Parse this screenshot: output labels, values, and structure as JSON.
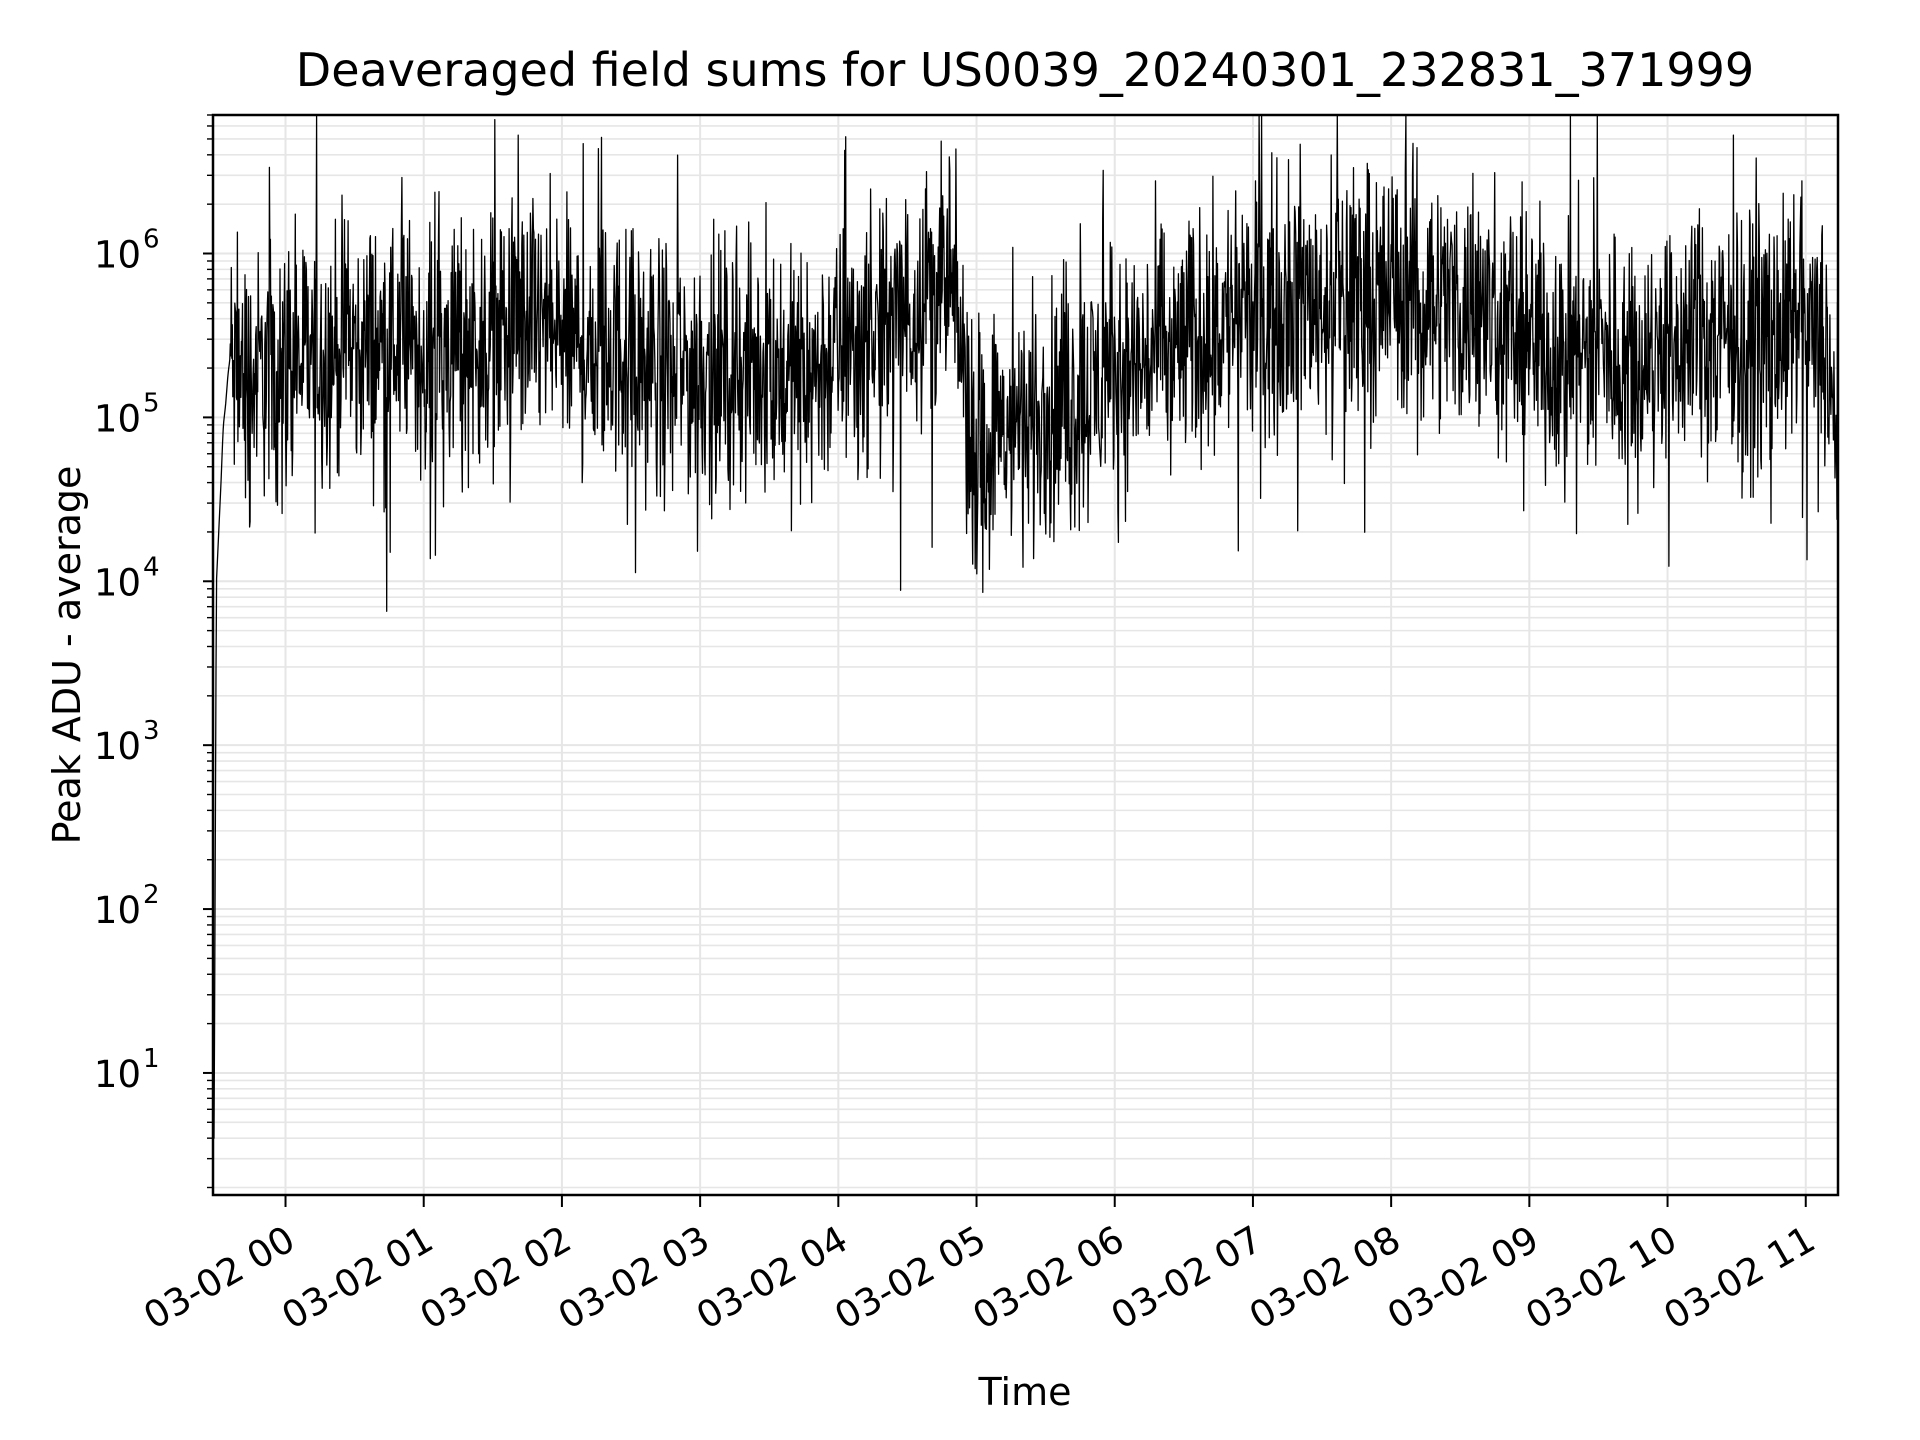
{
  "chart_data": {
    "type": "line",
    "title": "Deaveraged field sums for US0039_20240301_232831_371999",
    "xlabel": "Time",
    "ylabel": "Peak ADU - average",
    "yscale": "log",
    "ylim": [
      1.8,
      7000000
    ],
    "xlim": [
      "2024-03-01 23:28:31",
      "2024-03-02 11:14:00"
    ],
    "grid": "on (major and minor)",
    "line_color": "#000000",
    "grid_color": "#e6e6e6",
    "x_ticks": [
      {
        "value": "2024-03-02 00:00",
        "label": "03-02 00"
      },
      {
        "value": "2024-03-02 01:00",
        "label": "03-02 01"
      },
      {
        "value": "2024-03-02 02:00",
        "label": "03-02 02"
      },
      {
        "value": "2024-03-02 03:00",
        "label": "03-02 03"
      },
      {
        "value": "2024-03-02 04:00",
        "label": "03-02 04"
      },
      {
        "value": "2024-03-02 05:00",
        "label": "03-02 05"
      },
      {
        "value": "2024-03-02 06:00",
        "label": "03-02 06"
      },
      {
        "value": "2024-03-02 07:00",
        "label": "03-02 07"
      },
      {
        "value": "2024-03-02 08:00",
        "label": "03-02 08"
      },
      {
        "value": "2024-03-02 09:00",
        "label": "03-02 09"
      },
      {
        "value": "2024-03-02 10:00",
        "label": "03-02 10"
      },
      {
        "value": "2024-03-02 11:00",
        "label": "03-02 11"
      }
    ],
    "y_ticks": [
      {
        "value": 10,
        "base": "10",
        "exp": "1"
      },
      {
        "value": 100,
        "base": "10",
        "exp": "2"
      },
      {
        "value": 1000,
        "base": "10",
        "exp": "3"
      },
      {
        "value": 10000,
        "base": "10",
        "exp": "4"
      },
      {
        "value": 100000,
        "base": "10",
        "exp": "5"
      },
      {
        "value": 1000000,
        "base": "10",
        "exp": "6"
      }
    ],
    "series": [
      {
        "x": [
          "2024-03-01 23:28:31",
          "2024-03-01 23:29:00",
          "2024-03-01 23:30:00",
          "2024-03-01 23:31:00",
          "2024-03-01 23:32:00",
          "2024-03-01 23:33:00",
          "2024-03-01 23:34:00",
          "2024-03-01 23:35:00",
          "2024-03-01 23:36:00",
          "2024-03-01 23:38:00",
          "2024-03-01 23:40:00",
          "2024-03-01 23:42:00",
          "2024-03-01 23:45:00",
          "2024-03-01 23:50:00",
          "2024-03-01 23:55:00",
          "2024-03-02 00:00:00",
          "2024-03-02 00:10:00",
          "2024-03-02 00:20:00",
          "2024-03-02 00:30:00",
          "2024-03-02 00:40:00",
          "2024-03-02 00:50:00",
          "2024-03-02 01:00:00",
          "2024-03-02 01:10:00",
          "2024-03-02 01:20:00",
          "2024-03-02 01:30:00",
          "2024-03-02 01:40:00",
          "2024-03-02 01:50:00",
          "2024-03-02 02:00:00",
          "2024-03-02 02:10:00",
          "2024-03-02 02:20:00",
          "2024-03-02 02:30:00",
          "2024-03-02 02:40:00",
          "2024-03-02 02:50:00",
          "2024-03-02 03:00:00",
          "2024-03-02 03:10:00",
          "2024-03-02 03:20:00",
          "2024-03-02 03:30:00",
          "2024-03-02 03:40:00",
          "2024-03-02 03:50:00",
          "2024-03-02 04:00:00",
          "2024-03-02 04:10:00",
          "2024-03-02 04:20:00",
          "2024-03-02 04:30:00",
          "2024-03-02 04:40:00",
          "2024-03-02 04:50:00",
          "2024-03-02 05:00:00",
          "2024-03-02 05:10:00",
          "2024-03-02 05:20:00",
          "2024-03-02 05:30:00",
          "2024-03-02 05:40:00",
          "2024-03-02 05:50:00",
          "2024-03-02 06:00:00",
          "2024-03-02 06:10:00",
          "2024-03-02 06:20:00",
          "2024-03-02 06:30:00",
          "2024-03-02 06:40:00",
          "2024-03-02 06:50:00",
          "2024-03-02 07:00:00",
          "2024-03-02 07:10:00",
          "2024-03-02 07:20:00",
          "2024-03-02 07:30:00",
          "2024-03-02 07:40:00",
          "2024-03-02 07:50:00",
          "2024-03-02 08:00:00",
          "2024-03-02 08:10:00",
          "2024-03-02 08:20:00",
          "2024-03-02 08:30:00",
          "2024-03-02 08:40:00",
          "2024-03-02 08:50:00",
          "2024-03-02 09:00:00",
          "2024-03-02 09:10:00",
          "2024-03-02 09:20:00",
          "2024-03-02 09:30:00",
          "2024-03-02 09:40:00",
          "2024-03-02 09:50:00",
          "2024-03-02 10:00:00",
          "2024-03-02 10:10:00",
          "2024-03-02 10:20:00",
          "2024-03-02 10:30:00",
          "2024-03-02 10:40:00",
          "2024-03-02 10:50:00",
          "2024-03-02 11:00:00",
          "2024-03-02 11:05:00",
          "2024-03-02 11:10:00",
          "2024-03-02 11:14:00"
        ],
        "y": [
          4,
          4,
          10000,
          20000,
          40000,
          90000,
          120000,
          180000,
          240000,
          150000,
          200000,
          160000,
          170000,
          190000,
          210000,
          220000,
          230000,
          250000,
          280000,
          270000,
          300000,
          250000,
          280000,
          300000,
          320000,
          340000,
          380000,
          300000,
          280000,
          260000,
          240000,
          220000,
          200000,
          210000,
          190000,
          180000,
          200000,
          180000,
          190000,
          250000,
          300000,
          350000,
          450000,
          700000,
          500000,
          60000,
          80000,
          90000,
          100000,
          110000,
          150000,
          180000,
          210000,
          250000,
          280000,
          330000,
          400000,
          450000,
          500000,
          550000,
          520000,
          550000,
          600000,
          620000,
          600000,
          550000,
          480000,
          420000,
          380000,
          300000,
          280000,
          260000,
          250000,
          240000,
          260000,
          280000,
          300000,
          310000,
          300000,
          320000,
          330000,
          320000,
          280000,
          200000,
          40000
        ]
      }
    ]
  }
}
